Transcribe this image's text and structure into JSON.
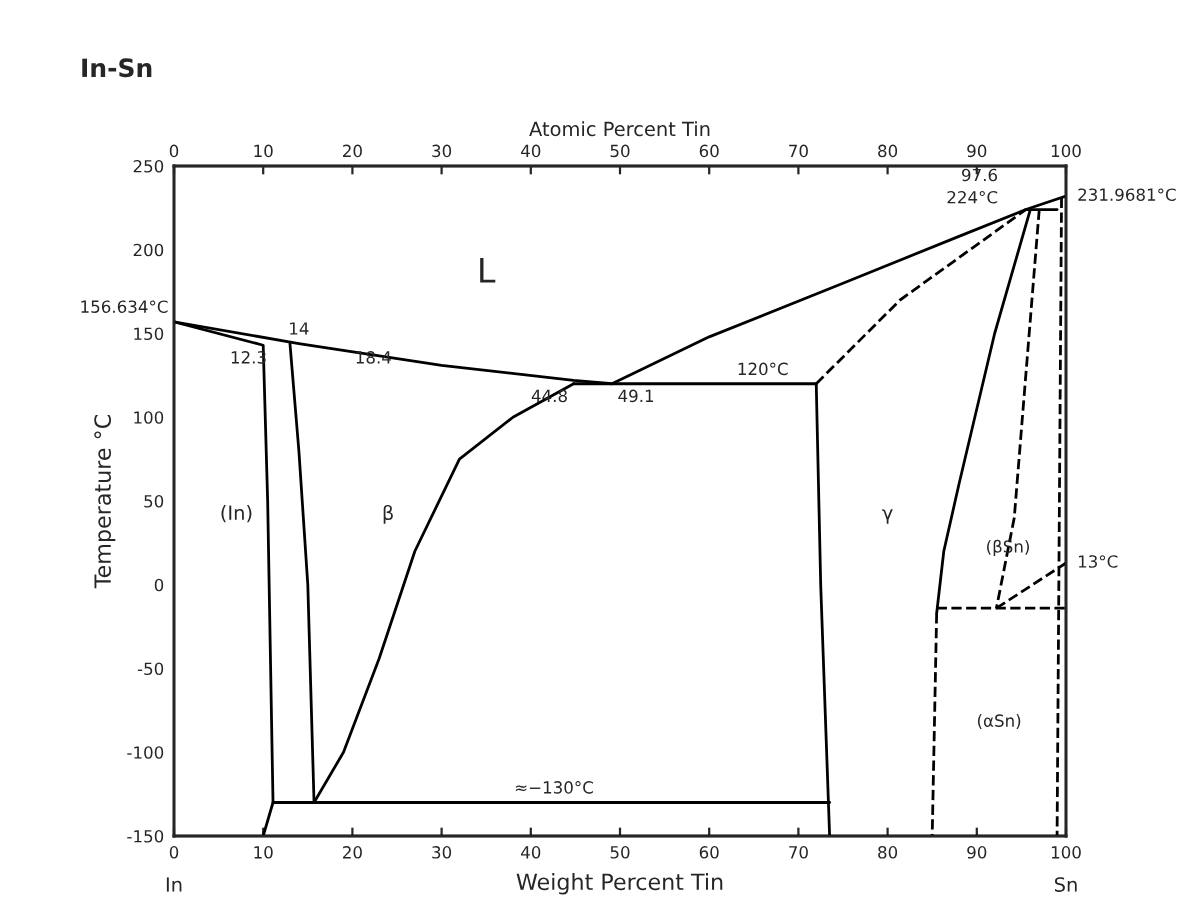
{
  "chart_data": {
    "type": "line",
    "title": "In-Sn",
    "xlabel": "Weight Percent Tin",
    "x2label": "Atomic Percent Tin",
    "ylabel": "Temperature °C",
    "xlim": [
      0,
      100
    ],
    "xticks": [
      0,
      10,
      20,
      30,
      40,
      50,
      60,
      70,
      80,
      90,
      100
    ],
    "x2lim": [
      0,
      100
    ],
    "x2ticks": [
      0,
      10,
      20,
      30,
      40,
      50,
      60,
      70,
      80,
      90,
      100
    ],
    "ylim": [
      -150,
      250
    ],
    "yticks": [
      -150,
      -100,
      -50,
      0,
      50,
      100,
      150,
      200,
      250
    ],
    "grid": false,
    "legend": false,
    "marker": "none",
    "series": [
      {
        "color": "#000000",
        "line_style": "solid",
        "x": [
          0,
          14,
          30,
          44.8,
          49.1,
          60,
          75,
          88,
          95.5,
          100
        ],
        "values": [
          157,
          144,
          131,
          122,
          120,
          148,
          180,
          208,
          224,
          232
        ]
      },
      {
        "color": "#000000",
        "line_style": "solid",
        "x": [
          0,
          10,
          10.5,
          11.1,
          10
        ],
        "values": [
          157,
          143,
          50,
          -130,
          -150
        ]
      },
      {
        "color": "#000000",
        "line_style": "solid",
        "x": [
          13,
          14,
          15,
          15.7
        ],
        "values": [
          144,
          80,
          0,
          -130
        ]
      },
      {
        "color": "#000000",
        "line_style": "solid",
        "x": [
          44.8,
          38,
          32,
          27,
          23,
          19,
          15.7
        ],
        "values": [
          120,
          100,
          75,
          20,
          -44,
          -100,
          -130
        ]
      },
      {
        "color": "#000000",
        "line_style": "solid",
        "x": [
          44.8,
          72
        ],
        "values": [
          120,
          120
        ]
      },
      {
        "color": "#000000",
        "line_style": "solid",
        "x": [
          72,
          72.5,
          73.5
        ],
        "values": [
          120,
          0,
          -150
        ]
      },
      {
        "color": "#000000",
        "line_style": "dashed",
        "x": [
          72,
          81.4,
          95.5
        ],
        "values": [
          120,
          170,
          224
        ]
      },
      {
        "color": "#000000",
        "line_style": "solid",
        "x": [
          96,
          92,
          88,
          86.3,
          85.5
        ],
        "values": [
          224,
          150,
          60,
          20,
          -17
        ]
      },
      {
        "color": "#000000",
        "line_style": "dashed",
        "x": [
          85.5,
          85
        ],
        "values": [
          -17,
          -150
        ]
      },
      {
        "color": "#000000",
        "line_style": "dashed",
        "x": [
          97,
          94.2,
          92.2
        ],
        "values": [
          224,
          40,
          -14
        ]
      },
      {
        "color": "#000000",
        "line_style": "dashed",
        "x": [
          92.2,
          100
        ],
        "values": [
          -14,
          13
        ]
      },
      {
        "color": "#000000",
        "line_style": "dashed",
        "x": [
          85.5,
          100
        ],
        "values": [
          -14,
          -14
        ]
      },
      {
        "color": "#000000",
        "line_style": "dashed",
        "x": [
          99.5,
          99
        ],
        "values": [
          231,
          -150
        ]
      },
      {
        "color": "#000000",
        "line_style": "solid",
        "x": [
          95.5,
          99
        ],
        "values": [
          224,
          224
        ]
      },
      {
        "color": "#000000",
        "line_style": "solid",
        "x": [
          11.1,
          73.5
        ],
        "values": [
          -130,
          -130
        ]
      }
    ],
    "annotations": [
      "L",
      "(In)",
      "β",
      "γ",
      "(βSn)",
      "(αSn)",
      {
        "text": "156.634°C",
        "x": 0,
        "y": 157
      },
      {
        "text": "231.9681°C",
        "x": 100,
        "y": 232
      },
      {
        "text": "12.3",
        "x": 12.3,
        "y": 143
      },
      {
        "text": "14",
        "x": 14,
        "y": 144
      },
      {
        "text": "18.4",
        "x": 18.4,
        "y": 143
      },
      {
        "text": "44.8",
        "x": 44.8,
        "y": 120
      },
      {
        "text": "49.1",
        "x": 49.1,
        "y": 120
      },
      "120°C",
      {
        "text": "97.6",
        "x": 95.5,
        "y": 224
      },
      {
        "text": "224°C",
        "x": 95.5,
        "y": 224
      },
      {
        "text": "13°C",
        "x": 100,
        "y": 13
      },
      {
        "text": "≈−130°C",
        "x": 42.6,
        "y": -130
      },
      "In",
      "Sn"
    ]
  }
}
